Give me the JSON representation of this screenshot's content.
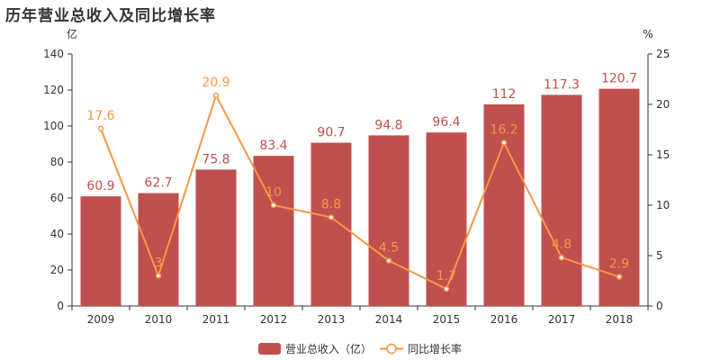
{
  "title": "历年营业总收入及同比增长率",
  "colors": {
    "bar": "#c0504d",
    "line": "#f79646",
    "axis": "#333333"
  },
  "chart_data": {
    "type": "bar",
    "title": "历年营业总收入及同比增长率",
    "categories": [
      "2009",
      "2010",
      "2011",
      "2012",
      "2013",
      "2014",
      "2015",
      "2016",
      "2017",
      "2018"
    ],
    "series": [
      {
        "name": "营业总收入（亿）",
        "type": "bar",
        "axis": "left",
        "values": [
          60.9,
          62.7,
          75.8,
          83.4,
          90.7,
          94.8,
          96.4,
          112,
          117.3,
          120.7
        ]
      },
      {
        "name": "同比增长率",
        "type": "line",
        "axis": "right",
        "values": [
          17.6,
          3,
          20.9,
          10,
          8.8,
          4.5,
          1.7,
          16.2,
          4.8,
          2.9
        ]
      }
    ],
    "ylabel_left": "亿",
    "ylabel_right": "%",
    "ylim_left": [
      0,
      140
    ],
    "yticks_left": [
      0,
      20,
      40,
      60,
      80,
      100,
      120,
      140
    ],
    "ylim_right": [
      0,
      25
    ],
    "yticks_right": [
      0,
      5,
      10,
      15,
      20,
      25
    ],
    "grid": false,
    "legend_position": "bottom"
  }
}
